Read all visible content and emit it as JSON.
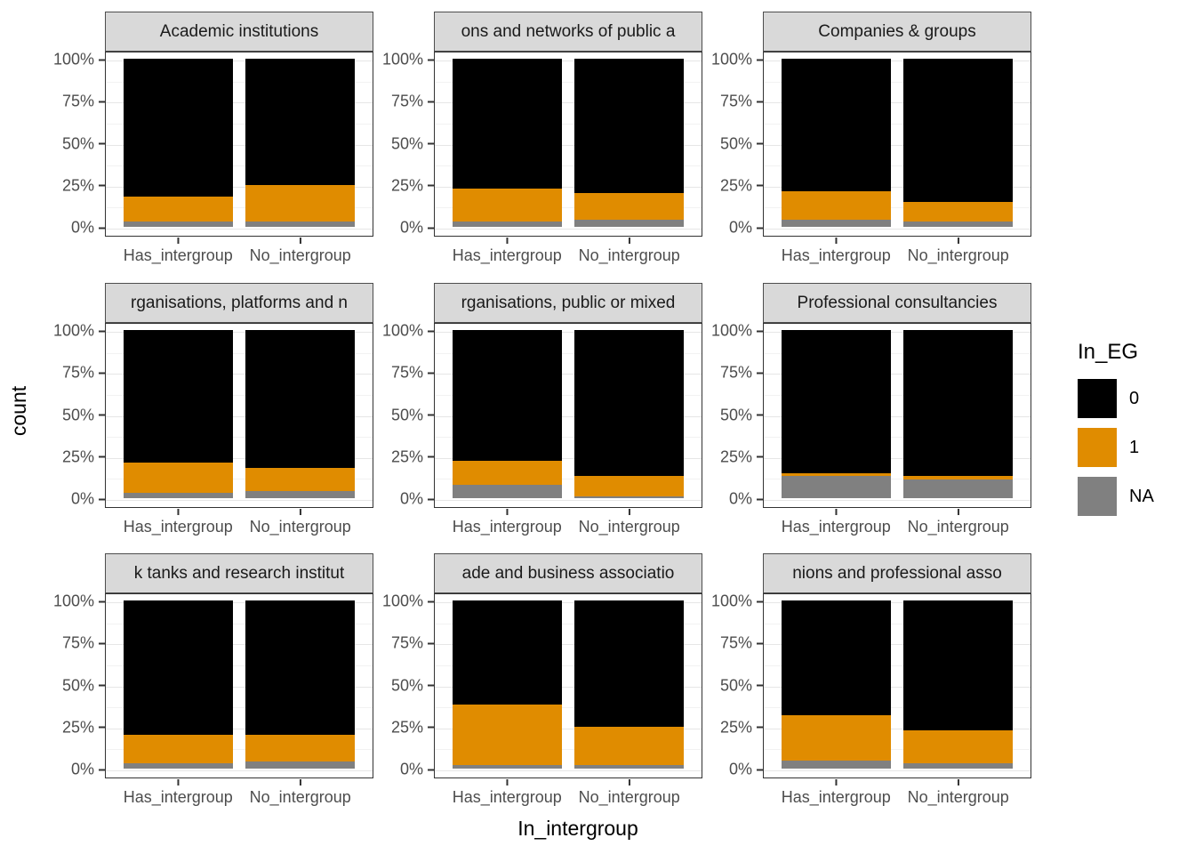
{
  "figure": {
    "y_axis_title": "count",
    "x_axis_title": "In_intergroup"
  },
  "legend": {
    "title": "In_EG",
    "entries": [
      {
        "label": "0",
        "color": "#000000"
      },
      {
        "label": "1",
        "color": "#e08c00"
      },
      {
        "label": "NA",
        "color": "#808080"
      }
    ]
  },
  "chart_data": {
    "type": "bar",
    "stacked": true,
    "normalized": "percent",
    "ylabel": "count",
    "xlabel": "In_intergroup",
    "ylim": [
      0,
      100
    ],
    "y_ticks": [
      "0%",
      "25%",
      "50%",
      "75%",
      "100%"
    ],
    "categories": [
      "Has_intergroup",
      "No_intergroup"
    ],
    "stack_order_bottom_to_top": [
      "NA",
      "1",
      "0"
    ],
    "legend_title": "In_EG",
    "legend_position": "right",
    "grid": true,
    "facets": [
      {
        "title": "Academic institutions",
        "bars": [
          {
            "category": "Has_intergroup",
            "NA": 3,
            "1": 15,
            "0": 82
          },
          {
            "category": "No_intergroup",
            "NA": 3,
            "1": 22,
            "0": 75
          }
        ]
      },
      {
        "title": "ons and networks of public a",
        "bars": [
          {
            "category": "Has_intergroup",
            "NA": 3,
            "1": 20,
            "0": 77
          },
          {
            "category": "No_intergroup",
            "NA": 4,
            "1": 16,
            "0": 80
          }
        ]
      },
      {
        "title": "Companies & groups",
        "bars": [
          {
            "category": "Has_intergroup",
            "NA": 4,
            "1": 17,
            "0": 79
          },
          {
            "category": "No_intergroup",
            "NA": 3,
            "1": 12,
            "0": 85
          }
        ]
      },
      {
        "title": "rganisations, platforms and n",
        "bars": [
          {
            "category": "Has_intergroup",
            "NA": 3,
            "1": 18,
            "0": 79
          },
          {
            "category": "No_intergroup",
            "NA": 4,
            "1": 14,
            "0": 82
          }
        ]
      },
      {
        "title": "rganisations, public or mixed",
        "bars": [
          {
            "category": "Has_intergroup",
            "NA": 8,
            "1": 14,
            "0": 78
          },
          {
            "category": "No_intergroup",
            "NA": 1,
            "1": 12,
            "0": 87
          }
        ]
      },
      {
        "title": "Professional consultancies",
        "bars": [
          {
            "category": "Has_intergroup",
            "NA": 13,
            "1": 2,
            "0": 85
          },
          {
            "category": "No_intergroup",
            "NA": 11,
            "1": 2,
            "0": 87
          }
        ]
      },
      {
        "title": "k tanks and research institut",
        "bars": [
          {
            "category": "Has_intergroup",
            "NA": 3,
            "1": 17,
            "0": 80
          },
          {
            "category": "No_intergroup",
            "NA": 4,
            "1": 16,
            "0": 80
          }
        ]
      },
      {
        "title": "ade and business associatio",
        "bars": [
          {
            "category": "Has_intergroup",
            "NA": 2,
            "1": 36,
            "0": 62
          },
          {
            "category": "No_intergroup",
            "NA": 2,
            "1": 23,
            "0": 75
          }
        ]
      },
      {
        "title": "nions and professional asso",
        "bars": [
          {
            "category": "Has_intergroup",
            "NA": 5,
            "1": 27,
            "0": 68
          },
          {
            "category": "No_intergroup",
            "NA": 3,
            "1": 20,
            "0": 77
          }
        ]
      }
    ]
  }
}
